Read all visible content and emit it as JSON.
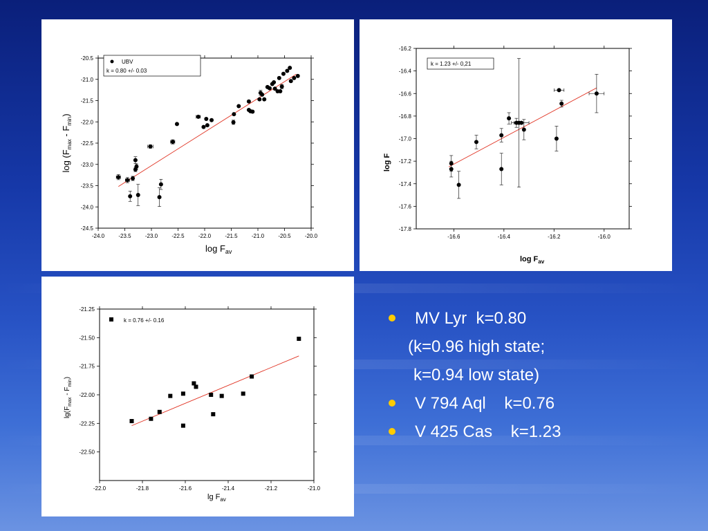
{
  "colors": {
    "fit_line": "#e03020",
    "points": "#000000",
    "bullet": "#ffcc00",
    "text": "#ffffff"
  },
  "chart_data": [
    {
      "type": "scatter",
      "xlabel": "log F",
      "xlabel_sub": "av",
      "ylabel": "log (F",
      "ylabel_sub1": "max",
      "ylabel_mid": " - F",
      "ylabel_sub2": "min",
      "ylabel_end": ")",
      "xlim": [
        -24.0,
        -20.0
      ],
      "ylim": [
        -24.5,
        -20.5
      ],
      "xticks": [
        -24.0,
        -23.5,
        -23.0,
        -22.5,
        -22.0,
        -21.5,
        -21.0,
        -20.5,
        -20.0
      ],
      "yticks": [
        -20.5,
        -21.0,
        -21.5,
        -22.0,
        -22.5,
        -23.0,
        -23.5,
        -24.0,
        -24.5
      ],
      "xtick_labels": [
        "-24.0",
        "-23.5",
        "-23.0",
        "-22.5",
        "-22.0",
        "-21.5",
        "-21.0",
        "-20.5",
        "-20.0"
      ],
      "ytick_labels": [
        "-20.5",
        "-21.0",
        "-21.5",
        "-22.0",
        "-22.5",
        "-23.0",
        "-23.5",
        "-24.0",
        "-24.5"
      ],
      "legend": {
        "series_name": "UBV",
        "fit_text": "k = 0.80 +/- 0.03",
        "position": "top-left"
      },
      "marker": "circle",
      "fit": {
        "x": [
          -23.62,
          -20.28
        ],
        "y": [
          -23.52,
          -20.88
        ]
      },
      "points": [
        {
          "x": -23.62,
          "y": -23.3,
          "ex": 0.04,
          "ey": 0.06
        },
        {
          "x": -23.45,
          "y": -23.37,
          "ex": 0.04,
          "ey": 0.06
        },
        {
          "x": -23.4,
          "y": -23.75,
          "ey": 0.12
        },
        {
          "x": -23.35,
          "y": -23.33,
          "ey": 0.05
        },
        {
          "x": -23.3,
          "y": -22.9,
          "ey": 0.08
        },
        {
          "x": -23.28,
          "y": -23.05,
          "ey": 0.06
        },
        {
          "x": -23.3,
          "y": -23.12,
          "ey": 0.05
        },
        {
          "x": -23.25,
          "y": -23.72,
          "ey": 0.25
        },
        {
          "x": -23.02,
          "y": -22.58,
          "ex": 0.05,
          "ey": 0.04
        },
        {
          "x": -22.85,
          "y": -23.77,
          "ey": 0.22
        },
        {
          "x": -22.82,
          "y": -23.47,
          "ey": 0.12
        },
        {
          "x": -22.6,
          "y": -22.47,
          "ex": 0.04,
          "ey": 0.05
        },
        {
          "x": -22.52,
          "y": -22.05
        },
        {
          "x": -22.12,
          "y": -21.88,
          "ex": 0.04
        },
        {
          "x": -22.02,
          "y": -22.12
        },
        {
          "x": -21.95,
          "y": -22.08
        },
        {
          "x": -21.97,
          "y": -21.93
        },
        {
          "x": -21.87,
          "y": -21.96
        },
        {
          "x": -21.46,
          "y": -22.01,
          "ey": 0.05
        },
        {
          "x": -21.45,
          "y": -21.82
        },
        {
          "x": -21.36,
          "y": -21.63
        },
        {
          "x": -21.17,
          "y": -21.52
        },
        {
          "x": -21.17,
          "y": -21.72
        },
        {
          "x": -21.14,
          "y": -21.75
        },
        {
          "x": -21.1,
          "y": -21.76
        },
        {
          "x": -20.97,
          "y": -21.47
        },
        {
          "x": -20.95,
          "y": -21.32,
          "ey": 0.06
        },
        {
          "x": -20.92,
          "y": -21.36
        },
        {
          "x": -20.88,
          "y": -21.47
        },
        {
          "x": -20.82,
          "y": -21.18
        },
        {
          "x": -20.78,
          "y": -21.21
        },
        {
          "x": -20.73,
          "y": -21.11
        },
        {
          "x": -20.7,
          "y": -21.07
        },
        {
          "x": -20.68,
          "y": -21.22
        },
        {
          "x": -20.63,
          "y": -21.28
        },
        {
          "x": -20.58,
          "y": -21.28
        },
        {
          "x": -20.6,
          "y": -20.97
        },
        {
          "x": -20.55,
          "y": -21.17,
          "ey": 0.05
        },
        {
          "x": -20.52,
          "y": -20.87
        },
        {
          "x": -20.45,
          "y": -20.8
        },
        {
          "x": -20.4,
          "y": -20.73
        },
        {
          "x": -20.38,
          "y": -21.04
        },
        {
          "x": -20.32,
          "y": -20.97
        },
        {
          "x": -20.25,
          "y": -20.92
        }
      ]
    },
    {
      "type": "scatter",
      "xlabel": "log F",
      "xlabel_sub": "av",
      "ylabel": "log   F",
      "xlim": [
        -16.75,
        -15.9
      ],
      "ylim": [
        -17.8,
        -16.2
      ],
      "xticks": [
        -16.6,
        -16.4,
        -16.2,
        -16.0
      ],
      "yticks": [
        -16.2,
        -16.4,
        -16.6,
        -16.8,
        -17.0,
        -17.2,
        -17.4,
        -17.6,
        -17.8
      ],
      "xtick_labels": [
        "-16.6",
        "-16.4",
        "-16.2",
        "-16.0"
      ],
      "ytick_labels": [
        "-16.2",
        "-16.4",
        "-16.6",
        "-16.8",
        "-17.0",
        "-17.2",
        "-17.4",
        "-17.6",
        "-17.8"
      ],
      "legend": {
        "fit_text": "k = 1.23 +/- 0,21",
        "position": "top-left"
      },
      "marker": "circle",
      "fit": {
        "x": [
          -16.62,
          -16.03
        ],
        "y": [
          -17.25,
          -16.55
        ]
      },
      "points": [
        {
          "x": -16.61,
          "y": -17.22,
          "ey": 0.07
        },
        {
          "x": -16.61,
          "y": -17.27,
          "ey": 0.07
        },
        {
          "x": -16.58,
          "y": -17.41,
          "ey": 0.12
        },
        {
          "x": -16.51,
          "y": -17.03,
          "ey": 0.06
        },
        {
          "x": -16.41,
          "y": -16.97,
          "ey": 0.06
        },
        {
          "x": -16.41,
          "y": -17.27,
          "ey": 0.14
        },
        {
          "x": -16.38,
          "y": -16.82,
          "ey": 0.05
        },
        {
          "x": -16.35,
          "y": -16.86,
          "ex": 0.02,
          "ey": 0.04
        },
        {
          "x": -16.34,
          "y": -16.86,
          "ey": 0.57
        },
        {
          "x": -16.33,
          "y": -16.86,
          "ex": 0.03
        },
        {
          "x": -16.32,
          "y": -16.92,
          "ey": 0.09
        },
        {
          "x": -16.19,
          "y": -17.0,
          "ey": 0.11
        },
        {
          "x": -16.18,
          "y": -16.57,
          "ex": 0.02
        },
        {
          "x": -16.17,
          "y": -16.69,
          "ey": 0.03
        },
        {
          "x": -16.03,
          "y": -16.6,
          "ex": 0.03,
          "ey": 0.17
        }
      ]
    },
    {
      "type": "scatter",
      "xlabel": "lg F",
      "xlabel_sub": "av",
      "ylabel": "lg(F",
      "ylabel_sub1": "max",
      "ylabel_mid": " - F",
      "ylabel_sub2": "min",
      "ylabel_end": ")",
      "xlim": [
        -22.0,
        -21.0
      ],
      "ylim": [
        -22.75,
        -21.25
      ],
      "xticks": [
        -22.0,
        -21.8,
        -21.6,
        -21.4,
        -21.2,
        -21.0
      ],
      "yticks": [
        -21.25,
        -21.5,
        -21.75,
        -22.0,
        -22.25,
        -22.5
      ],
      "xtick_labels": [
        "-22.0",
        "-21.8",
        "-21.6",
        "-21.4",
        "-21.2",
        "-21.0"
      ],
      "ytick_labels": [
        "-21.25",
        "-21.50",
        "-21.75",
        "-22.00",
        "-22.25",
        "-22.50"
      ],
      "legend": {
        "fit_text": "k = 0.76 +/- 0.16",
        "position": "top-left"
      },
      "marker": "square",
      "fit": {
        "x": [
          -21.85,
          -21.07
        ],
        "y": [
          -22.27,
          -21.66
        ]
      },
      "points": [
        {
          "x": -21.85,
          "y": -22.23
        },
        {
          "x": -21.76,
          "y": -22.21
        },
        {
          "x": -21.72,
          "y": -22.15
        },
        {
          "x": -21.67,
          "y": -22.01
        },
        {
          "x": -21.61,
          "y": -22.27
        },
        {
          "x": -21.61,
          "y": -21.99
        },
        {
          "x": -21.56,
          "y": -21.9
        },
        {
          "x": -21.55,
          "y": -21.93
        },
        {
          "x": -21.48,
          "y": -22.0
        },
        {
          "x": -21.47,
          "y": -22.17
        },
        {
          "x": -21.43,
          "y": -22.01
        },
        {
          "x": -21.33,
          "y": -21.99
        },
        {
          "x": -21.29,
          "y": -21.84
        },
        {
          "x": -21.07,
          "y": -21.51
        }
      ]
    }
  ],
  "bullets": [
    {
      "text": "MV Lyr  k=0.80",
      "bullet": true
    },
    {
      "text": "(k=0.96 high state;",
      "bullet": false,
      "indent": 28
    },
    {
      "text": "k=0.94 low state)",
      "bullet": false,
      "indent": 36
    },
    {
      "text": "V 794 Aql    k=0.76",
      "bullet": true
    },
    {
      "text": "V 425 Cas    k=1.23",
      "bullet": true
    }
  ]
}
